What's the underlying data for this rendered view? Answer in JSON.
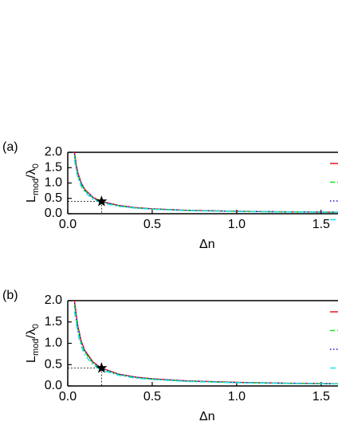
{
  "chart_data": [
    {
      "type": "line",
      "panel_label": "(a)",
      "xlabel": "Δn",
      "ylabel": [
        "L",
        "mod",
        "/λ",
        "0"
      ],
      "x": [
        0.04,
        0.05,
        0.06,
        0.08,
        0.1,
        0.15,
        0.2,
        0.3,
        0.4,
        0.5,
        0.7,
        1.0,
        1.3,
        1.6
      ],
      "series": [
        {
          "color": "#e8131b",
          "dash": "solid",
          "values": [
            2.0,
            1.6,
            1.33,
            1.0,
            0.8,
            0.53,
            0.4,
            0.27,
            0.2,
            0.16,
            0.11,
            0.08,
            0.06,
            0.05
          ]
        },
        {
          "color": "#1fdc1f",
          "dash": "dashed",
          "values": [
            1.9,
            1.52,
            1.27,
            0.95,
            0.76,
            0.51,
            0.38,
            0.26,
            0.19,
            0.155,
            0.11,
            0.078,
            0.06,
            0.05
          ]
        },
        {
          "color": "#1a1ad8",
          "dash": "dotted",
          "values": [
            1.95,
            1.56,
            1.3,
            0.98,
            0.78,
            0.52,
            0.39,
            0.265,
            0.195,
            0.157,
            0.11,
            0.079,
            0.06,
            0.05
          ]
        },
        {
          "color": "#19e6e6",
          "dash": "dashdot",
          "values": [
            1.75,
            1.4,
            1.17,
            0.88,
            0.7,
            0.47,
            0.35,
            0.24,
            0.18,
            0.145,
            0.1,
            0.073,
            0.057,
            0.047
          ]
        }
      ],
      "marker": {
        "x": 0.2,
        "y": 0.4
      },
      "xlim": [
        0,
        1.6
      ],
      "xticks": [
        {
          "value": 0,
          "label": "0.0"
        },
        0.5,
        {
          "value": 1,
          "label": "1.0"
        },
        1.5
      ],
      "ylim": [
        0,
        2
      ],
      "yticks": [
        {
          "value": 0,
          "label": "0.0"
        },
        0.5,
        {
          "value": 1,
          "label": "1.0"
        },
        1.5,
        {
          "value": 2,
          "label": "2.0"
        }
      ]
    },
    {
      "type": "line",
      "panel_label": "(b)",
      "xlabel": "Δn",
      "ylabel": [
        "L",
        "mod",
        "/λ",
        "0"
      ],
      "x": [
        0.04,
        0.05,
        0.06,
        0.08,
        0.1,
        0.15,
        0.2,
        0.3,
        0.4,
        0.5,
        0.7,
        1.0,
        1.3,
        1.6
      ],
      "series": [
        {
          "color": "#e8131b",
          "dash": "solid",
          "values": [
            2.0,
            1.68,
            1.4,
            1.05,
            0.84,
            0.56,
            0.42,
            0.28,
            0.21,
            0.17,
            0.12,
            0.084,
            0.065,
            0.053
          ]
        },
        {
          "color": "#1fdc1f",
          "dash": "dashed",
          "values": [
            1.9,
            1.6,
            1.33,
            1.0,
            0.8,
            0.53,
            0.4,
            0.27,
            0.2,
            0.16,
            0.115,
            0.08,
            0.062,
            0.05
          ]
        },
        {
          "color": "#1a1ad8",
          "dash": "dotted",
          "values": [
            1.95,
            1.64,
            1.37,
            1.03,
            0.82,
            0.55,
            0.41,
            0.275,
            0.205,
            0.165,
            0.117,
            0.082,
            0.063,
            0.052
          ]
        },
        {
          "color": "#19e6e6",
          "dash": "dashdot",
          "values": [
            1.75,
            1.47,
            1.22,
            0.92,
            0.73,
            0.49,
            0.37,
            0.25,
            0.185,
            0.15,
            0.106,
            0.075,
            0.058,
            0.048
          ]
        }
      ],
      "marker": {
        "x": 0.2,
        "y": 0.42
      },
      "xlim": [
        0,
        1.6
      ],
      "xticks": [
        {
          "value": 0,
          "label": "0.0"
        },
        0.5,
        {
          "value": 1,
          "label": "1.0"
        },
        1.5
      ],
      "ylim": [
        0,
        2
      ],
      "yticks": [
        {
          "value": 0,
          "label": "0.0"
        },
        0.5,
        {
          "value": 1,
          "label": "1.0"
        },
        1.5,
        {
          "value": 2,
          "label": "2.0"
        }
      ]
    }
  ]
}
